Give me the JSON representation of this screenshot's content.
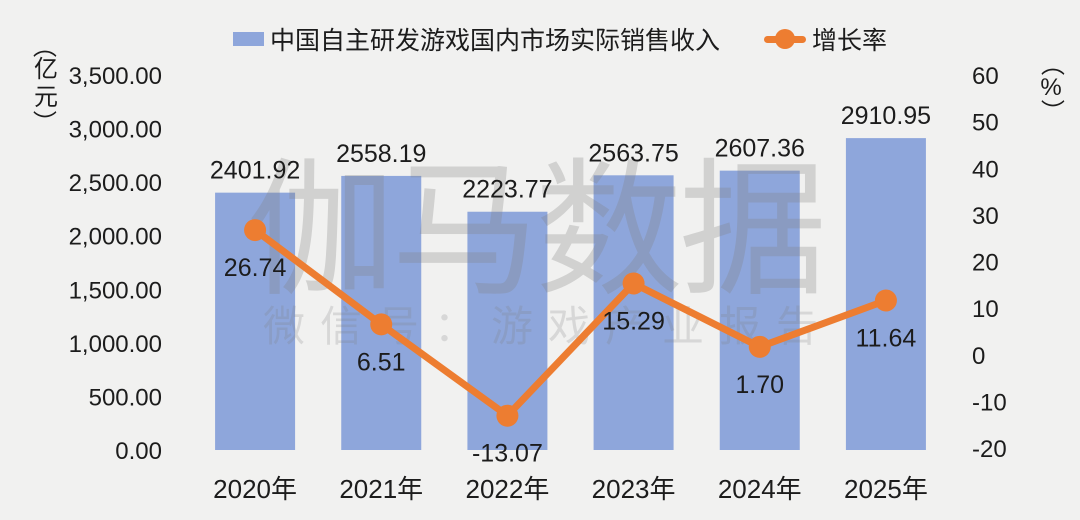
{
  "colors": {
    "background": "#f1f1f0",
    "bar": "#8ea6db",
    "line": "#ed7d31",
    "text": "#1c1c1c",
    "watermark": "#808080"
  },
  "legend": {
    "bar_label": "中国自主研发游戏国内市场实际销售收入",
    "line_label": "增长率"
  },
  "left_axis": {
    "unit_open": "（",
    "unit_chars": "亿元",
    "unit_close": "）",
    "tick_labels": [
      "3,500.00",
      "3,000.00",
      "2,500.00",
      "2,000.00",
      "1,500.00",
      "1,000.00",
      "500.00",
      "0.00"
    ],
    "tick_values": [
      3500,
      3000,
      2500,
      2000,
      1500,
      1000,
      500,
      0
    ]
  },
  "right_axis": {
    "unit_open": "（",
    "unit_chars": "%",
    "unit_close": "）",
    "tick_labels": [
      "60",
      "50",
      "40",
      "30",
      "20",
      "10",
      "0",
      "-10",
      "-20"
    ],
    "tick_values": [
      60,
      50,
      40,
      30,
      20,
      10,
      0,
      -10,
      -20
    ]
  },
  "watermark": {
    "title": "伽马数据",
    "subtitle": "微信号：游戏产业报告"
  },
  "chart_data": {
    "type": "bar+line",
    "categories": [
      "2020年",
      "2021年",
      "2022年",
      "2023年",
      "2024年",
      "2025年"
    ],
    "series": [
      {
        "name": "中国自主研发游戏国内市场实际销售收入",
        "type": "bar",
        "axis": "left",
        "values": [
          2401.92,
          2558.19,
          2223.77,
          2563.75,
          2607.36,
          2910.95
        ],
        "labels": [
          "2401.92",
          "2558.19",
          "2223.77",
          "2563.75",
          "2607.36",
          "2910.95"
        ]
      },
      {
        "name": "增长率",
        "type": "line",
        "axis": "right",
        "values": [
          26.74,
          6.51,
          -13.07,
          15.29,
          1.7,
          11.64
        ],
        "labels": [
          "26.74",
          "6.51",
          "-13.07",
          "15.29",
          "1.70",
          "11.64"
        ]
      }
    ],
    "left_ylabel": "（亿元）",
    "right_ylabel": "（%）",
    "left_ylim": [
      0,
      3500
    ],
    "right_ylim": [
      -20,
      60
    ],
    "grid": false,
    "legend_position": "top"
  }
}
